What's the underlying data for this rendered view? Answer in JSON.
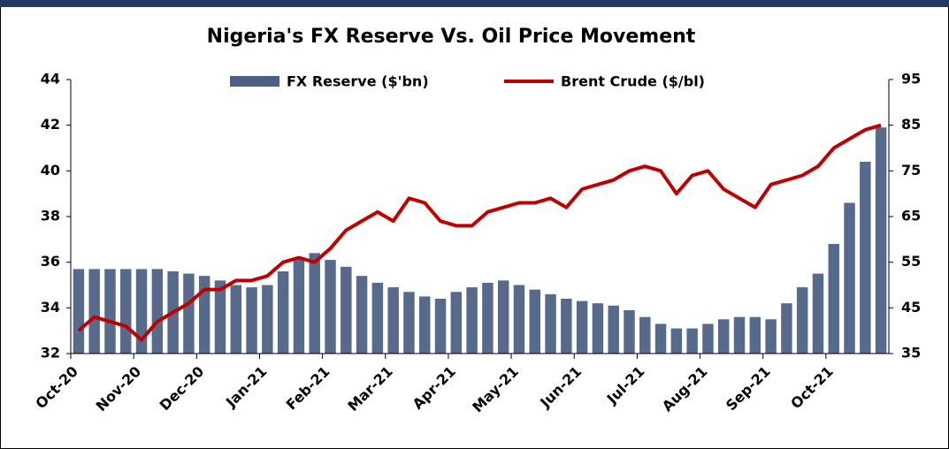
{
  "chart_data": {
    "type": "bar-line",
    "title": "Nigeria's FX Reserve Vs. Oil Price Movement",
    "categories": [
      "Oct-20",
      null,
      null,
      null,
      "Nov-20",
      null,
      null,
      null,
      "Dec-20",
      null,
      null,
      null,
      "Jan-21",
      null,
      null,
      null,
      "Feb-21",
      null,
      null,
      null,
      "Mar-21",
      null,
      null,
      null,
      "Apr-21",
      null,
      null,
      null,
      "May-21",
      null,
      null,
      null,
      "Jun-21",
      null,
      null,
      null,
      "Jul-21",
      null,
      null,
      null,
      "Aug-21",
      null,
      null,
      null,
      "Sep-21",
      null,
      null,
      null,
      "Oct-21",
      null,
      null,
      null
    ],
    "series": [
      {
        "name": "FX Reserve ($'bn)",
        "color": "#1f3864",
        "chart": "bar",
        "values": [
          35.7,
          35.7,
          35.7,
          35.7,
          35.7,
          35.7,
          35.6,
          35.5,
          35.4,
          35.2,
          35.0,
          34.9,
          35.0,
          35.6,
          36.2,
          36.4,
          36.1,
          35.8,
          35.4,
          35.1,
          34.9,
          34.7,
          34.5,
          34.4,
          34.7,
          34.9,
          35.1,
          35.2,
          35.0,
          34.8,
          34.6,
          34.4,
          34.3,
          34.2,
          34.1,
          33.9,
          33.6,
          33.3,
          33.1,
          33.1,
          33.3,
          33.5,
          33.6,
          33.6,
          33.5,
          34.2,
          34.9,
          35.5,
          36.8,
          38.6,
          40.4,
          41.9
        ]
      },
      {
        "name": "Brent Crude ($/bl)",
        "color": "#c00000",
        "chart": "line",
        "axis": "y2",
        "values": [
          40,
          43,
          42,
          41,
          38,
          42,
          44,
          46,
          49,
          49,
          51,
          51,
          52,
          55,
          56,
          55,
          58,
          62,
          64,
          66,
          64,
          69,
          68,
          64,
          63,
          63,
          66,
          67,
          68,
          68,
          69,
          67,
          71,
          72,
          73,
          75,
          76,
          75,
          70,
          74,
          75,
          71,
          69,
          67,
          72,
          73,
          74,
          76,
          80,
          82,
          84,
          85
        ]
      }
    ],
    "ylim": [
      32,
      44
    ],
    "yticks": [
      32,
      34,
      36,
      38,
      40,
      42,
      44
    ],
    "y2lim": [
      35,
      95
    ],
    "y2ticks": [
      35,
      45,
      55,
      65,
      75,
      85,
      95
    ],
    "legend": "top"
  }
}
